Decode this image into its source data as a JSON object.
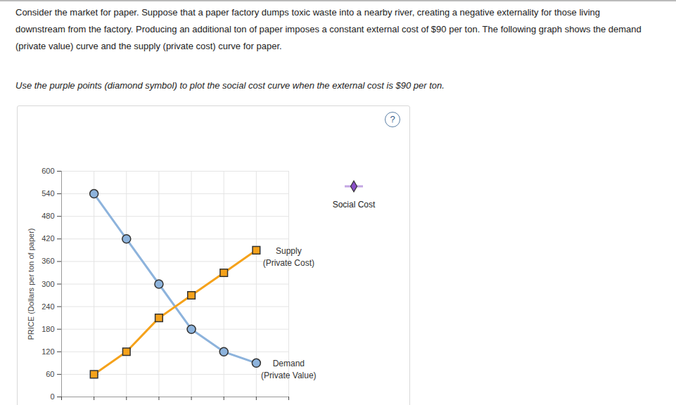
{
  "page": {
    "question": "Consider the market for paper. Suppose that a paper factory dumps toxic waste into a nearby river, creating a negative externality for those living downstream from the factory. Producing an additional ton of paper imposes a constant external cost of $90 per ton. The following graph shows the demand (private value) curve and the supply (private cost) curve for paper.",
    "instruction": "Use the purple points (diamond symbol) to plot the social cost curve when the external cost is $90 per ton.",
    "help_icon": "?"
  },
  "chart_data": {
    "type": "line",
    "y_label": "PRICE (Dollars per ton of paper)",
    "x": [
      1,
      2,
      3,
      4,
      5,
      6
    ],
    "series": [
      {
        "name": "Demand (Private Value)",
        "color": "#8db3dc",
        "marker": "circle",
        "values": [
          540,
          420,
          300,
          180,
          120,
          90
        ]
      },
      {
        "name": "Supply (Private Cost)",
        "color": "#f5a21b",
        "marker": "square",
        "values": [
          60,
          120,
          210,
          270,
          330,
          390
        ]
      },
      {
        "name": "Social Cost",
        "color": "#8a4fc8",
        "marker": "diamond",
        "values": [
          null,
          null,
          null,
          null,
          null,
          null
        ]
      }
    ],
    "xlim": [
      0,
      7
    ],
    "xticks": [
      0,
      1,
      2,
      3,
      4,
      5,
      6,
      7
    ],
    "ylim": [
      0,
      600
    ],
    "yticks": [
      0,
      60,
      120,
      180,
      240,
      300,
      360,
      420,
      480,
      540,
      600
    ],
    "grid": true,
    "tick_labels": "y",
    "legend": "right"
  }
}
